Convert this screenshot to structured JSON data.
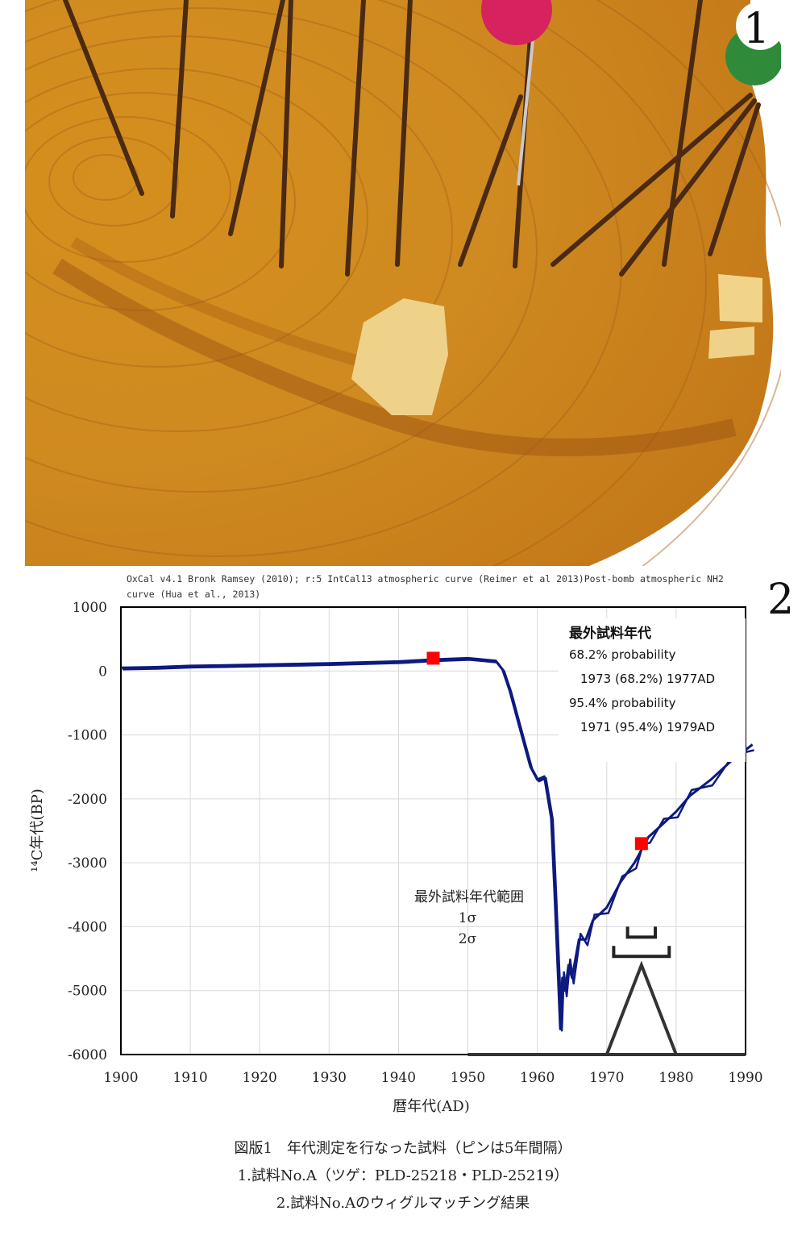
{
  "photo": {
    "figure_label": "1"
  },
  "chart_figure_label": "2",
  "oxcal_note": "OxCal v4.1 Bronk Ramsey (2010); r:5 IntCal13 atmospheric curve (Reimer et al 2013)Post-bomb atmospheric NH2 curve  (Hua et al., 2013)",
  "chart_data": {
    "type": "line",
    "xlabel": "暦年代(AD)",
    "ylabel": "¹⁴C年代(BP)",
    "xlim": [
      1900,
      1990
    ],
    "ylim": [
      -6000,
      1000
    ],
    "x_ticks": [
      "1900",
      "1910",
      "1920",
      "1930",
      "1940",
      "1950",
      "1960",
      "1970",
      "1980",
      "1990"
    ],
    "y_ticks": [
      "1000",
      "0",
      "-1000",
      "-2000",
      "-3000",
      "-4000",
      "-5000",
      "-6000"
    ],
    "grid": true,
    "series": [
      {
        "name": "",
        "color": "#0d1a80",
        "x": [
          1900,
          1905,
          1910,
          1915,
          1920,
          1930,
          1940,
          1945,
          1950,
          1952,
          1954,
          1955,
          1956,
          1957,
          1958,
          1959,
          1960,
          1961,
          1962,
          1962.5,
          1963,
          1963.3,
          1963.6,
          1964,
          1964.5,
          1965,
          1966,
          1967,
          1968,
          1970,
          1972,
          1974,
          1975,
          1976,
          1978,
          1980,
          1982,
          1985,
          1988,
          1991
        ],
        "values": [
          50,
          60,
          80,
          90,
          100,
          120,
          150,
          180,
          200,
          180,
          160,
          20,
          -300,
          -700,
          -1100,
          -1500,
          -1700,
          -1650,
          -2300,
          -3500,
          -4800,
          -5600,
          -4800,
          -5000,
          -4600,
          -4800,
          -4200,
          -4200,
          -3900,
          -3700,
          -3300,
          -3000,
          -2800,
          -2600,
          -2400,
          -2200,
          -1950,
          -1700,
          -1400,
          -1150
        ]
      }
    ],
    "markers": [
      {
        "x": 1945,
        "y": 200,
        "color": "#ff0000"
      },
      {
        "x": 1975,
        "y": -2700,
        "color": "#ff0000"
      }
    ],
    "legend": {
      "title": "最外試料年代",
      "p1_label": "68.2% probability",
      "p1_range": "1973 (68.2%) 1977AD",
      "p2_label": "95.4% probability",
      "p2_range": "1971 (95.4%) 1979AD"
    },
    "range_annotation": {
      "title": "最外試料年代範囲",
      "sigma1": "1σ",
      "sigma2": "2σ",
      "sigma1_range": [
        1973,
        1977
      ],
      "sigma2_range": [
        1971,
        1979
      ]
    },
    "probability_distribution": {
      "x": [
        1970,
        1975,
        1980
      ],
      "peak_year": 1975
    }
  },
  "caption": {
    "line1": "図版1　年代測定を行なった試料（ピンは5年間隔）",
    "line2": "1.試料No.A（ツゲ：PLD-25218・PLD-25219）",
    "line3": "2.試料No.Aのウィグルマッチング結果"
  }
}
